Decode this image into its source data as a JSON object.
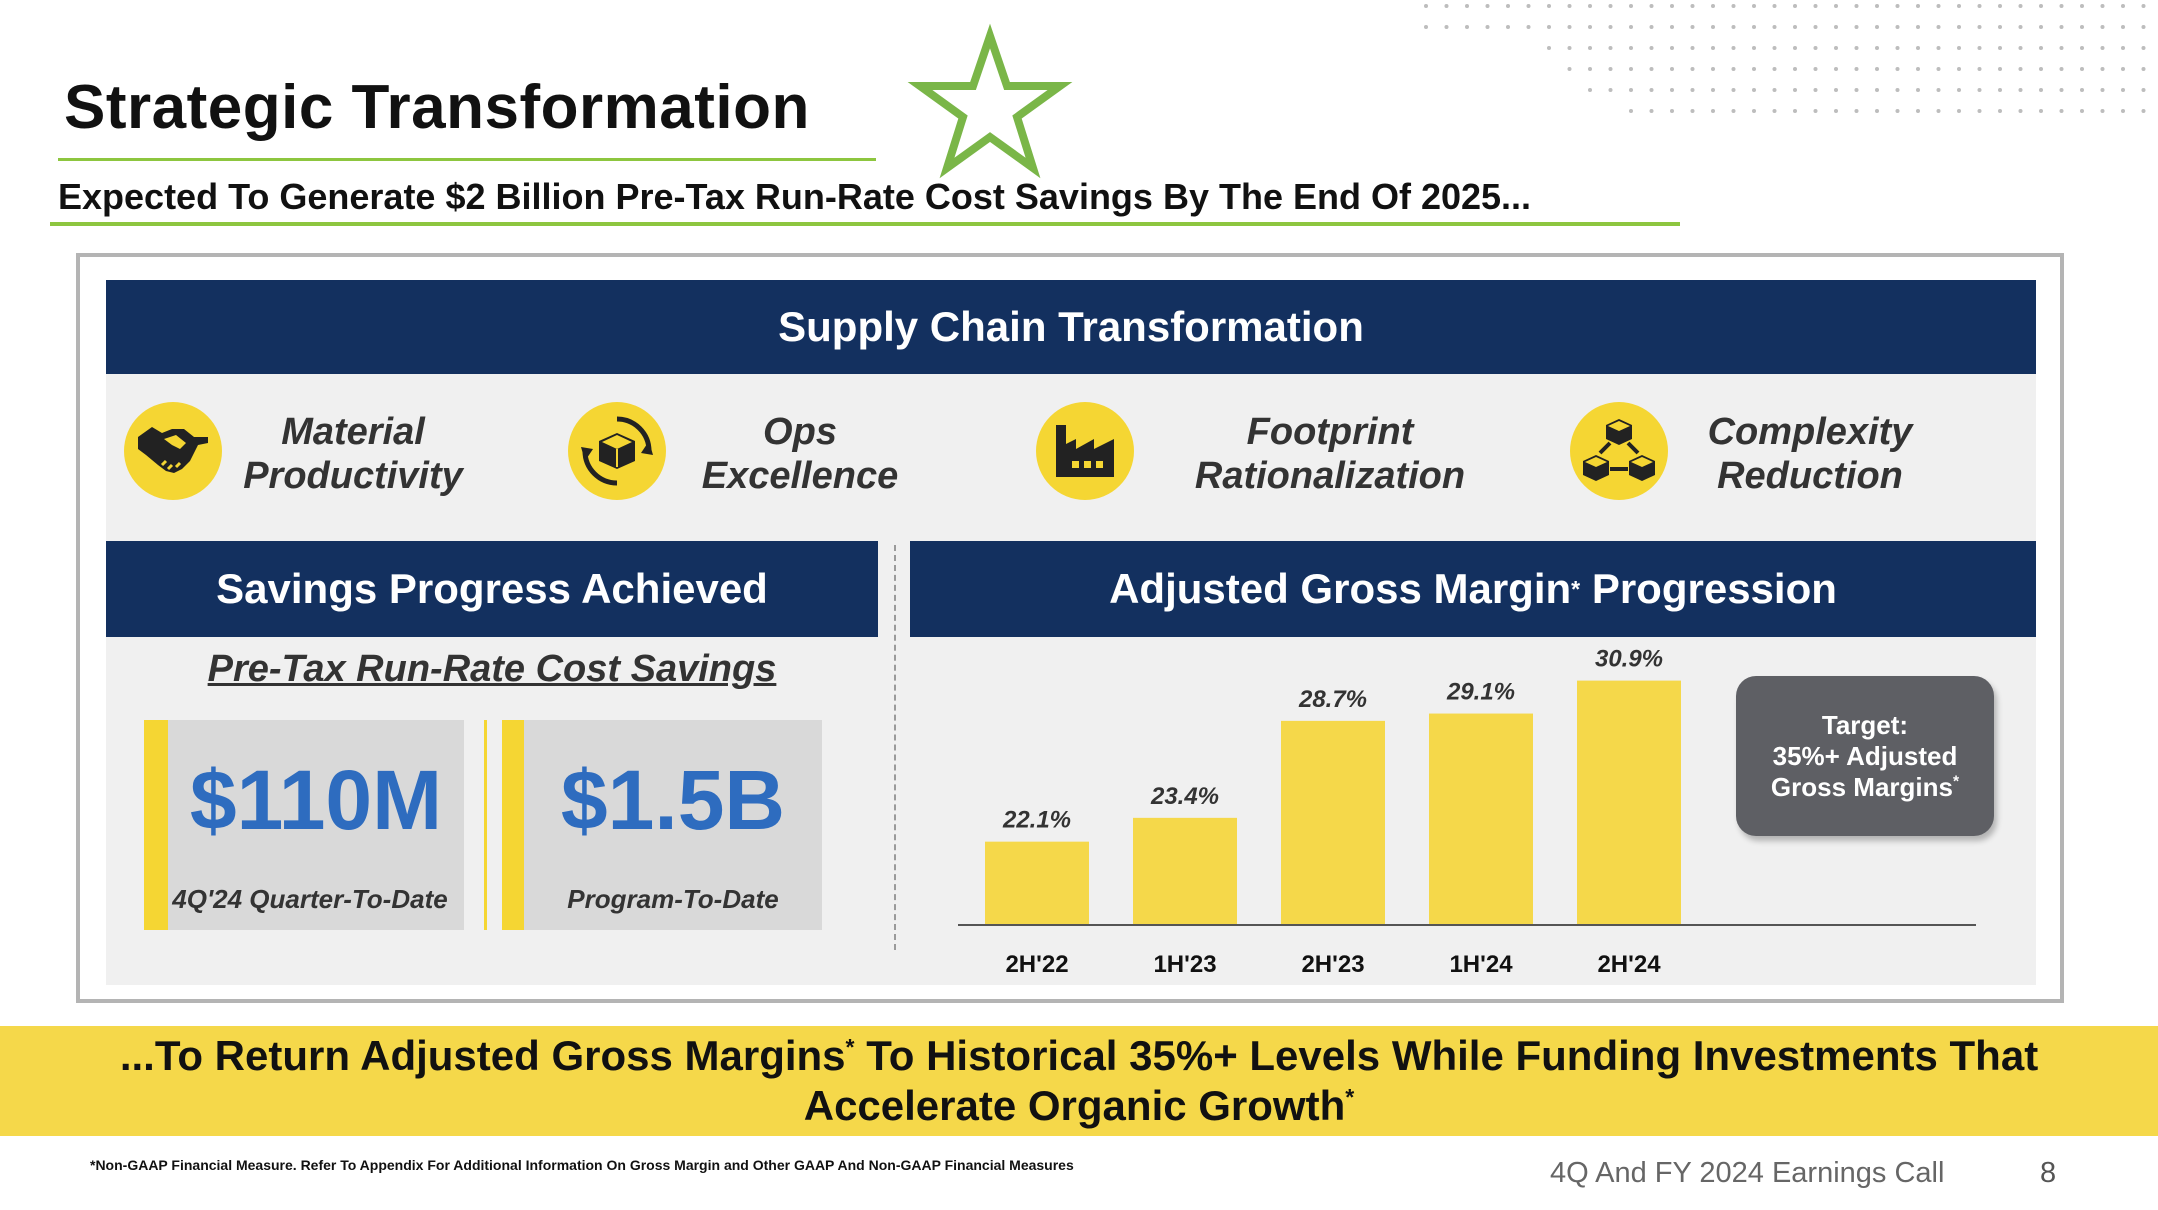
{
  "header": {
    "title": "Strategic Transformation",
    "subtitle": "Expected To Generate $2 Billion Pre-Tax Run-Rate Cost Savings By The End Of 2025..."
  },
  "supply_chain": {
    "title": "Supply Chain Transformation",
    "pillars": [
      {
        "line1": "Material",
        "line2": "Productivity",
        "icon": "handshake-icon"
      },
      {
        "line1": "Ops",
        "line2": "Excellence",
        "icon": "box-cycle-icon"
      },
      {
        "line1": "Footprint",
        "line2": "Rationalization",
        "icon": "factory-icon"
      },
      {
        "line1": "Complexity",
        "line2": "Reduction",
        "icon": "cubes-network-icon"
      }
    ]
  },
  "savings": {
    "title": "Savings Progress Achieved",
    "subtitle": "Pre-Tax Run-Rate Cost Savings",
    "cards": [
      {
        "value": "$110M",
        "caption": "4Q'24 Quarter-To-Date"
      },
      {
        "value": "$1.5B",
        "caption": "Program-To-Date"
      }
    ]
  },
  "agm": {
    "title_main": "Adjusted Gross Margin",
    "title_mark": "*",
    "title_tail": " Progression",
    "target_line1": "Target:",
    "target_line2": "35%+ Adjusted",
    "target_line3": "Gross Margins",
    "target_mark": "*"
  },
  "chart_data": {
    "type": "bar",
    "categories": [
      "2H'22",
      "1H'23",
      "2H'23",
      "1H'24",
      "2H'24"
    ],
    "values": [
      22.1,
      23.4,
      28.7,
      29.1,
      30.9
    ],
    "value_labels": [
      "22.1%",
      "23.4%",
      "28.7%",
      "29.1%",
      "30.9%"
    ],
    "unit": "%",
    "bar_color": "#f5d84a",
    "grid": false
  },
  "conclusion": {
    "line1_pre": "...To Return Adjusted Gross Margins",
    "line1_mark": "*",
    "line1_post": " To Historical 35%+ Levels While Funding Investments That",
    "line2": "Accelerate Organic Growth",
    "line2_mark": "*"
  },
  "footer": {
    "footnote": "*Non-GAAP Financial Measure. Refer To Appendix For Additional Information On Gross Margin and Other GAAP And Non-GAAP Financial Measures",
    "event": "4Q And FY 2024 Earnings Call",
    "page_number": "8"
  },
  "colors": {
    "navy": "#13305f",
    "yellow": "#f5d633",
    "green": "#8dc63f",
    "blue_value": "#2e6cbf",
    "gray_box": "#5e5f64"
  }
}
